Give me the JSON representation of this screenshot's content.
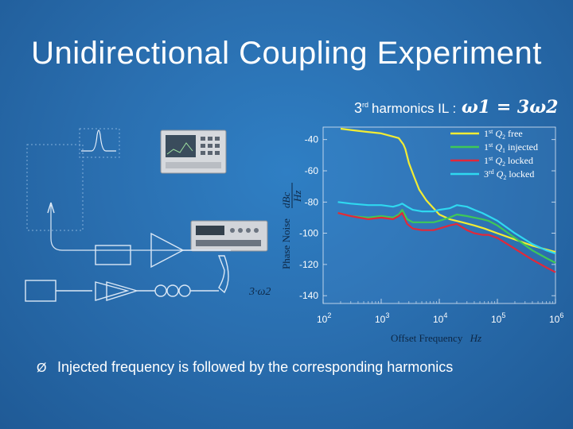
{
  "slide": {
    "title": "Unidirectional Coupling Experiment",
    "equation_prefix_number": "3",
    "equation_prefix_sup": "rd",
    "equation_prefix_text": "harmonics IL :",
    "equation": "ω1 = 3ω2",
    "bullet_marker": "Ø",
    "bullet_text": "Injected frequency is followed by the corresponding harmonics"
  },
  "diagram": {
    "label": "3·ω2"
  },
  "chart_data": {
    "type": "line",
    "ylabel_main": "Phase Noise",
    "ylabel_fraction_top": "dBc",
    "ylabel_fraction_bottom": "Hz",
    "xlabel": "Offset Frequency",
    "xlabel_unit": "Hz",
    "xscale": "log",
    "xlim": [
      100,
      1000000
    ],
    "ylim": [
      -145,
      -32
    ],
    "x_ticks": [
      {
        "base": "10",
        "exp": "2"
      },
      {
        "base": "10",
        "exp": "3"
      },
      {
        "base": "10",
        "exp": "4"
      },
      {
        "base": "10",
        "exp": "5"
      },
      {
        "base": "10",
        "exp": "6"
      }
    ],
    "y_ticks": [
      "-40",
      "-60",
      "-80",
      "-100",
      "-120",
      "-140"
    ],
    "y_tick_values": [
      -40,
      -60,
      -80,
      -100,
      -120,
      -140
    ],
    "grid": false,
    "legend_position": "top-right",
    "series": [
      {
        "name": "1st Q2 free",
        "legend": {
          "sup": "st",
          "sym": "Q",
          "sub": "2",
          "text": "free"
        },
        "color": "#f2ec34",
        "x": [
          200,
          320,
          550,
          1000,
          2000,
          2400,
          2600,
          3000,
          3700,
          4500,
          6000,
          8000,
          10000,
          15000,
          25000,
          40000,
          60000,
          100000,
          200000,
          400000,
          1000000
        ],
        "y": [
          -33,
          -34,
          -35,
          -36,
          -39,
          -43,
          -46,
          -55,
          -64,
          -72,
          -79,
          -84,
          -88,
          -91,
          -93,
          -95,
          -97,
          -100,
          -104,
          -108,
          -112
        ]
      },
      {
        "name": "1st Q1 injected",
        "legend": {
          "sup": "st",
          "sym": "Q",
          "sub": "1",
          "text": "injected"
        },
        "color": "#3ec858",
        "x": [
          180,
          300,
          600,
          1000,
          1600,
          2000,
          2300,
          2800,
          3500,
          5000,
          8000,
          10000,
          15000,
          20000,
          30000,
          40000,
          55000,
          70000,
          100000,
          200000,
          400000,
          700000,
          1000000
        ],
        "y": [
          -87,
          -89,
          -90,
          -89,
          -90,
          -88,
          -85,
          -91,
          -93,
          -93,
          -93,
          -92,
          -90,
          -88,
          -89,
          -90,
          -91,
          -92,
          -95,
          -103,
          -111,
          -116,
          -119
        ]
      },
      {
        "name": "1st Q2 locked",
        "legend": {
          "sup": "st",
          "sym": "Q",
          "sub": "2",
          "text": "locked"
        },
        "color": "#e2283a",
        "x": [
          180,
          300,
          600,
          1000,
          1600,
          2000,
          2300,
          2800,
          3500,
          5000,
          8000,
          10000,
          15000,
          20000,
          30000,
          40000,
          55000,
          70000,
          100000,
          200000,
          400000,
          700000,
          1000000
        ],
        "y": [
          -87,
          -89,
          -91,
          -90,
          -91,
          -89,
          -87,
          -94,
          -97,
          -98,
          -98,
          -97,
          -95,
          -94,
          -98,
          -100,
          -101,
          -101,
          -103,
          -110,
          -117,
          -122,
          -125
        ]
      },
      {
        "name": "3rd Q2 locked",
        "legend": {
          "sup": "rd",
          "sym": "Q",
          "sub": "2",
          "text": "locked"
        },
        "color": "#2fd8f0",
        "x": [
          180,
          300,
          600,
          1000,
          1600,
          2000,
          2300,
          2800,
          3500,
          5000,
          8000,
          10000,
          15000,
          20000,
          30000,
          40000,
          55000,
          70000,
          100000,
          200000,
          400000,
          700000,
          1000000
        ],
        "y": [
          -80,
          -81,
          -82,
          -82,
          -83,
          -82,
          -81,
          -83,
          -85,
          -86,
          -86,
          -85,
          -84,
          -82,
          -83,
          -85,
          -87,
          -89,
          -92,
          -100,
          -107,
          -111,
          -113
        ]
      }
    ]
  }
}
